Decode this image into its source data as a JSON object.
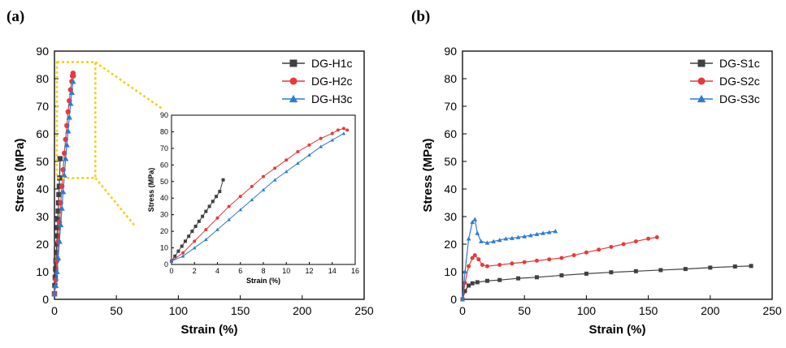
{
  "panels": {
    "a": {
      "label": "(a)"
    },
    "b": {
      "label": "(b)"
    }
  },
  "chart_data": [
    {
      "id": "a",
      "type": "line",
      "xlabel": "Strain (%)",
      "ylabel": "Stress (MPa)",
      "xlim": [
        0,
        250
      ],
      "ylim": [
        0,
        90
      ],
      "xticks": [
        0,
        50,
        100,
        150,
        200,
        250
      ],
      "yticks": [
        0,
        10,
        20,
        30,
        40,
        50,
        60,
        70,
        80,
        90
      ],
      "legend_position": "top-right",
      "series": [
        {
          "name": "DG-H1c",
          "color": "#404040",
          "marker": "square",
          "x": [
            0,
            0.3,
            0.6,
            0.9,
            1.2,
            1.5,
            1.8,
            2.1,
            2.4,
            2.7,
            3.0,
            3.3,
            3.6,
            3.9,
            4.2,
            4.5
          ],
          "y": [
            2,
            5,
            8,
            11,
            14,
            17,
            20,
            23,
            26,
            29,
            32,
            35,
            38,
            41,
            44,
            51
          ]
        },
        {
          "name": "DG-H2c",
          "color": "#e8393a",
          "marker": "circle",
          "x": [
            0,
            1,
            2,
            3,
            4,
            5,
            6,
            7,
            8,
            9,
            10,
            11,
            12,
            13,
            14,
            14.5,
            15,
            15.3
          ],
          "y": [
            2,
            7,
            14,
            21,
            28,
            35,
            41,
            47,
            53,
            58,
            63,
            68,
            72,
            76,
            79,
            81,
            82,
            81
          ]
        },
        {
          "name": "DG-H3c",
          "color": "#2e7bd1",
          "marker": "triangle",
          "x": [
            0,
            1,
            2,
            3,
            4,
            5,
            6,
            7,
            8,
            9,
            10,
            11,
            12,
            13,
            14,
            15
          ],
          "y": [
            2,
            5,
            10,
            15,
            21,
            27,
            33,
            39,
            45,
            51,
            56,
            61,
            66,
            71,
            75,
            79
          ]
        }
      ],
      "zoom_box": {
        "x": [
          0,
          33
        ],
        "y": [
          44,
          86
        ]
      },
      "inset": {
        "xlabel": "Strain (%)",
        "ylabel": "Stress (MPa)",
        "xlim": [
          0,
          16
        ],
        "ylim": [
          0,
          90
        ],
        "xticks": [
          0,
          2,
          4,
          6,
          8,
          10,
          12,
          14,
          16
        ],
        "yticks": [
          0,
          10,
          20,
          30,
          40,
          50,
          60,
          70,
          80,
          90
        ]
      }
    },
    {
      "id": "b",
      "type": "line",
      "xlabel": "Strain (%)",
      "ylabel": "Stress (MPa)",
      "xlim": [
        0,
        250
      ],
      "ylim": [
        0,
        90
      ],
      "xticks": [
        0,
        50,
        100,
        150,
        200,
        250
      ],
      "yticks": [
        0,
        10,
        20,
        30,
        40,
        50,
        60,
        70,
        80,
        90
      ],
      "legend_position": "top-right",
      "series": [
        {
          "name": "DG-S1c",
          "color": "#404040",
          "marker": "square",
          "x": [
            0,
            2,
            5,
            8,
            12,
            20,
            30,
            45,
            60,
            80,
            100,
            120,
            140,
            160,
            180,
            200,
            220,
            233
          ],
          "y": [
            0,
            3,
            5,
            5.8,
            6.2,
            6.7,
            7.0,
            7.6,
            8.0,
            8.7,
            9.3,
            9.8,
            10.2,
            10.6,
            11.0,
            11.5,
            11.9,
            12.1
          ]
        },
        {
          "name": "DG-S2c",
          "color": "#e8393a",
          "marker": "circle",
          "x": [
            0,
            2,
            5,
            8,
            10,
            13,
            16,
            20,
            30,
            40,
            50,
            60,
            70,
            80,
            90,
            100,
            110,
            120,
            130,
            140,
            150,
            157
          ],
          "y": [
            0,
            6,
            12,
            15,
            16,
            14.5,
            12.5,
            12,
            12.5,
            13,
            13.5,
            14,
            14.5,
            15,
            16,
            17,
            18,
            19,
            20,
            21,
            22,
            22.5
          ]
        },
        {
          "name": "DG-S3c",
          "color": "#2e7bd1",
          "marker": "triangle",
          "x": [
            0,
            2,
            5,
            8,
            10,
            12,
            15,
            20,
            25,
            30,
            35,
            40,
            45,
            50,
            55,
            60,
            65,
            70,
            75
          ],
          "y": [
            0,
            10,
            22,
            28,
            29,
            24,
            21,
            20.5,
            21,
            21.5,
            22,
            22.2,
            22.5,
            22.8,
            23.2,
            23.6,
            24,
            24.3,
            24.7
          ]
        }
      ]
    }
  ]
}
